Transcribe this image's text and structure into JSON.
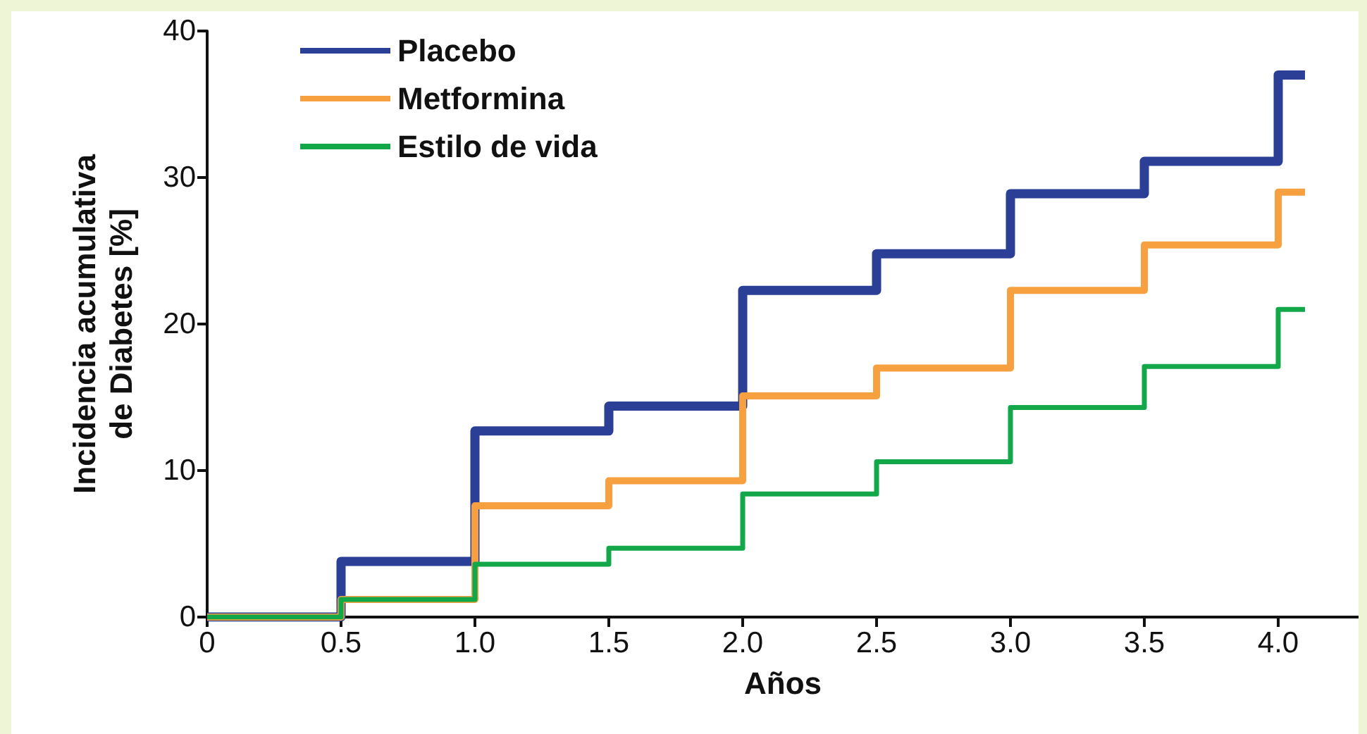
{
  "chart_data": {
    "type": "step",
    "xlabel": "Años",
    "ylabel": "Incidencia acumulativa\nde Diabetes [%]",
    "x": [
      0,
      0.5,
      1.0,
      1.5,
      2.0,
      2.5,
      3.0,
      3.5,
      4.0,
      4.1
    ],
    "series": [
      {
        "name": "Placebo",
        "color": "#2a3f95",
        "values": [
          0,
          3.8,
          12.7,
          14.4,
          22.3,
          24.8,
          28.9,
          31.1,
          37,
          37
        ]
      },
      {
        "name": "Metformina",
        "color": "#f7a040",
        "values": [
          0,
          1.2,
          7.6,
          9.3,
          15.1,
          17,
          22.3,
          25.4,
          29,
          29
        ]
      },
      {
        "name": "Estilo de vida",
        "color": "#12a84a",
        "values": [
          0,
          1.2,
          3.6,
          4.7,
          8.4,
          10.6,
          14.3,
          17.1,
          21,
          21
        ]
      }
    ],
    "xlim": [
      0,
      4.3
    ],
    "ylim": [
      0,
      40
    ],
    "xticks": [
      0,
      {
        "value": 0.5,
        "label": "0.5"
      },
      {
        "value": 1,
        "label": "1.0"
      },
      {
        "value": 1.5,
        "label": "1.5"
      },
      {
        "value": 2,
        "label": "2.0"
      },
      {
        "value": 2.5,
        "label": "2.5"
      },
      {
        "value": 3,
        "label": "3.0"
      },
      {
        "value": 3.5,
        "label": "3.5"
      },
      {
        "value": 4,
        "label": "4.0"
      }
    ],
    "yticks": [
      0,
      10,
      20,
      30,
      40
    ],
    "grid": false,
    "legend": "top left",
    "marker": "none",
    "line_style": "solid"
  }
}
